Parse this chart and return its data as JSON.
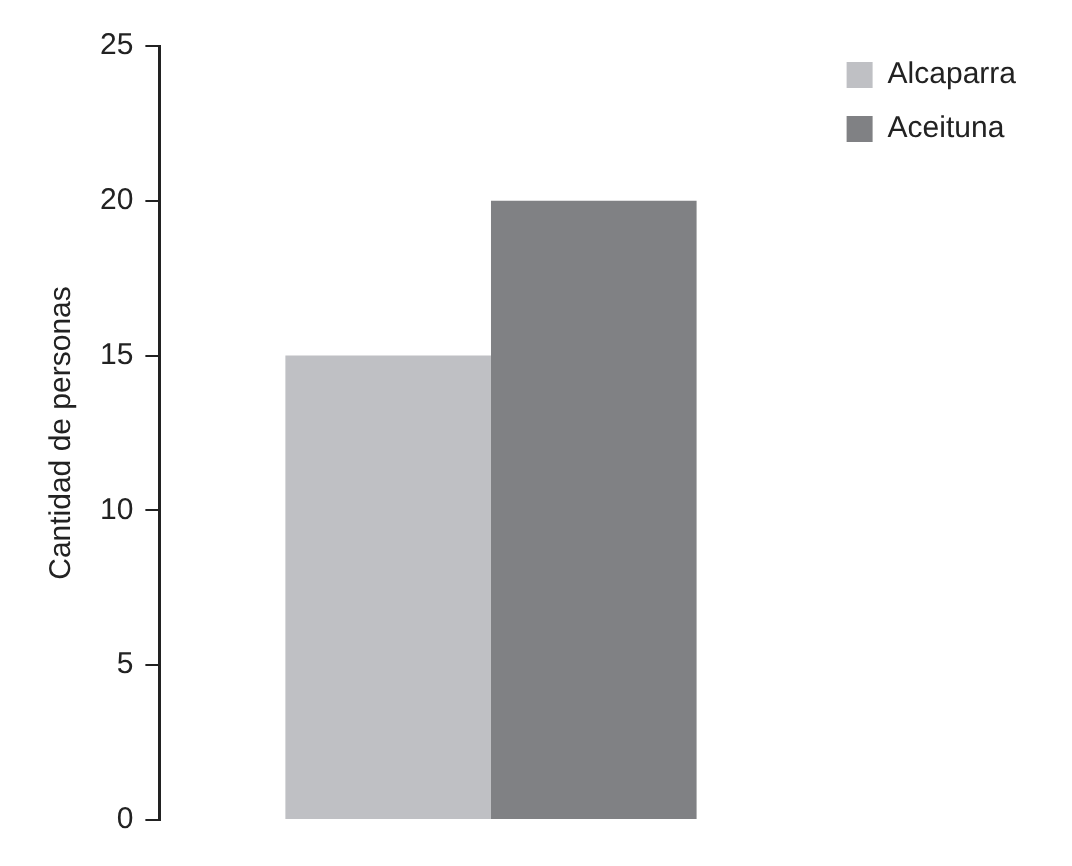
{
  "chart_data": {
    "type": "bar",
    "ylabel": "Cantidad de personas",
    "categories": [
      null
    ],
    "series": [
      {
        "name": "Alcaparra",
        "color": "#bfc0c4",
        "values": [
          15
        ]
      },
      {
        "name": "Aceituna",
        "color": "#808184",
        "values": [
          20
        ]
      }
    ],
    "ylim": [
      0,
      25
    ],
    "yticks": [
      0,
      5,
      10,
      15,
      20,
      25
    ],
    "grid": false,
    "legend": "right"
  }
}
